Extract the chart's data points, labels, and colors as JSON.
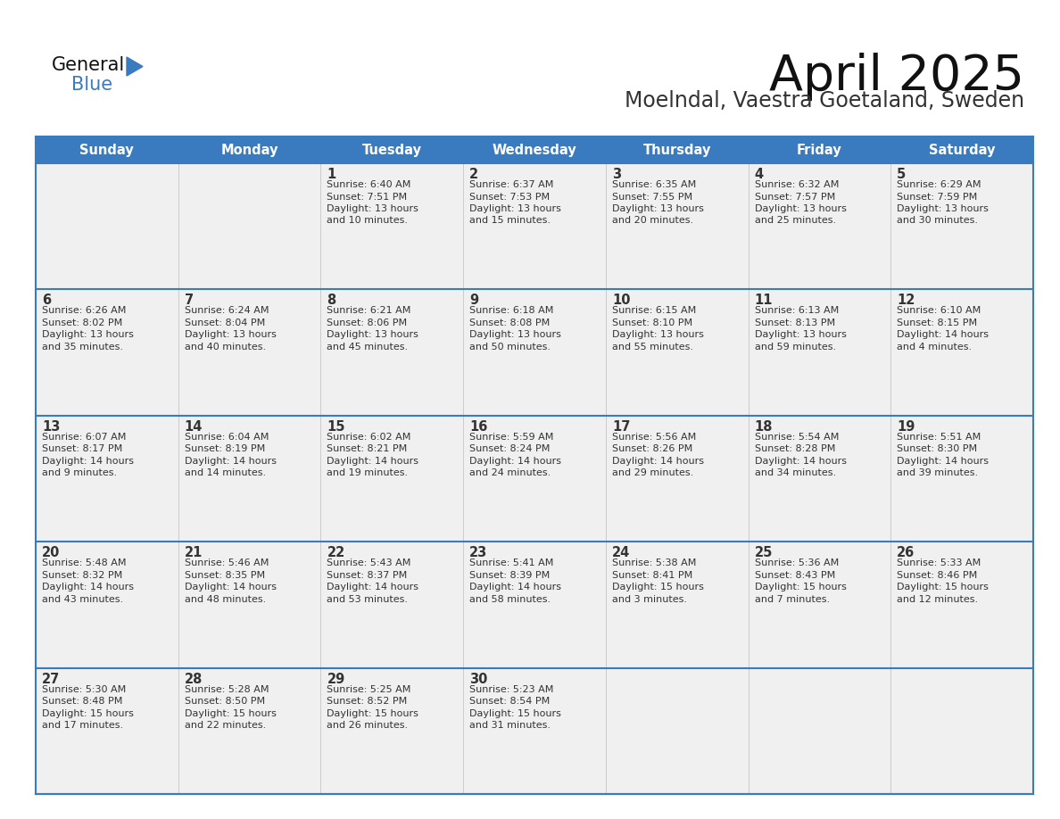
{
  "title": "April 2025",
  "subtitle": "Moelndal, Vaestra Goetaland, Sweden",
  "header_color": "#3a7bbf",
  "header_text_color": "#ffffff",
  "cell_bg_color": "#f0f0f0",
  "border_color": "#3a7bbf",
  "text_color": "#333333",
  "days_of_week": [
    "Sunday",
    "Monday",
    "Tuesday",
    "Wednesday",
    "Thursday",
    "Friday",
    "Saturday"
  ],
  "weeks": [
    [
      {
        "day": "",
        "sunrise": "",
        "sunset": "",
        "daylight": ""
      },
      {
        "day": "",
        "sunrise": "",
        "sunset": "",
        "daylight": ""
      },
      {
        "day": "1",
        "sunrise": "Sunrise: 6:40 AM",
        "sunset": "Sunset: 7:51 PM",
        "daylight": "Daylight: 13 hours\nand 10 minutes."
      },
      {
        "day": "2",
        "sunrise": "Sunrise: 6:37 AM",
        "sunset": "Sunset: 7:53 PM",
        "daylight": "Daylight: 13 hours\nand 15 minutes."
      },
      {
        "day": "3",
        "sunrise": "Sunrise: 6:35 AM",
        "sunset": "Sunset: 7:55 PM",
        "daylight": "Daylight: 13 hours\nand 20 minutes."
      },
      {
        "day": "4",
        "sunrise": "Sunrise: 6:32 AM",
        "sunset": "Sunset: 7:57 PM",
        "daylight": "Daylight: 13 hours\nand 25 minutes."
      },
      {
        "day": "5",
        "sunrise": "Sunrise: 6:29 AM",
        "sunset": "Sunset: 7:59 PM",
        "daylight": "Daylight: 13 hours\nand 30 minutes."
      }
    ],
    [
      {
        "day": "6",
        "sunrise": "Sunrise: 6:26 AM",
        "sunset": "Sunset: 8:02 PM",
        "daylight": "Daylight: 13 hours\nand 35 minutes."
      },
      {
        "day": "7",
        "sunrise": "Sunrise: 6:24 AM",
        "sunset": "Sunset: 8:04 PM",
        "daylight": "Daylight: 13 hours\nand 40 minutes."
      },
      {
        "day": "8",
        "sunrise": "Sunrise: 6:21 AM",
        "sunset": "Sunset: 8:06 PM",
        "daylight": "Daylight: 13 hours\nand 45 minutes."
      },
      {
        "day": "9",
        "sunrise": "Sunrise: 6:18 AM",
        "sunset": "Sunset: 8:08 PM",
        "daylight": "Daylight: 13 hours\nand 50 minutes."
      },
      {
        "day": "10",
        "sunrise": "Sunrise: 6:15 AM",
        "sunset": "Sunset: 8:10 PM",
        "daylight": "Daylight: 13 hours\nand 55 minutes."
      },
      {
        "day": "11",
        "sunrise": "Sunrise: 6:13 AM",
        "sunset": "Sunset: 8:13 PM",
        "daylight": "Daylight: 13 hours\nand 59 minutes."
      },
      {
        "day": "12",
        "sunrise": "Sunrise: 6:10 AM",
        "sunset": "Sunset: 8:15 PM",
        "daylight": "Daylight: 14 hours\nand 4 minutes."
      }
    ],
    [
      {
        "day": "13",
        "sunrise": "Sunrise: 6:07 AM",
        "sunset": "Sunset: 8:17 PM",
        "daylight": "Daylight: 14 hours\nand 9 minutes."
      },
      {
        "day": "14",
        "sunrise": "Sunrise: 6:04 AM",
        "sunset": "Sunset: 8:19 PM",
        "daylight": "Daylight: 14 hours\nand 14 minutes."
      },
      {
        "day": "15",
        "sunrise": "Sunrise: 6:02 AM",
        "sunset": "Sunset: 8:21 PM",
        "daylight": "Daylight: 14 hours\nand 19 minutes."
      },
      {
        "day": "16",
        "sunrise": "Sunrise: 5:59 AM",
        "sunset": "Sunset: 8:24 PM",
        "daylight": "Daylight: 14 hours\nand 24 minutes."
      },
      {
        "day": "17",
        "sunrise": "Sunrise: 5:56 AM",
        "sunset": "Sunset: 8:26 PM",
        "daylight": "Daylight: 14 hours\nand 29 minutes."
      },
      {
        "day": "18",
        "sunrise": "Sunrise: 5:54 AM",
        "sunset": "Sunset: 8:28 PM",
        "daylight": "Daylight: 14 hours\nand 34 minutes."
      },
      {
        "day": "19",
        "sunrise": "Sunrise: 5:51 AM",
        "sunset": "Sunset: 8:30 PM",
        "daylight": "Daylight: 14 hours\nand 39 minutes."
      }
    ],
    [
      {
        "day": "20",
        "sunrise": "Sunrise: 5:48 AM",
        "sunset": "Sunset: 8:32 PM",
        "daylight": "Daylight: 14 hours\nand 43 minutes."
      },
      {
        "day": "21",
        "sunrise": "Sunrise: 5:46 AM",
        "sunset": "Sunset: 8:35 PM",
        "daylight": "Daylight: 14 hours\nand 48 minutes."
      },
      {
        "day": "22",
        "sunrise": "Sunrise: 5:43 AM",
        "sunset": "Sunset: 8:37 PM",
        "daylight": "Daylight: 14 hours\nand 53 minutes."
      },
      {
        "day": "23",
        "sunrise": "Sunrise: 5:41 AM",
        "sunset": "Sunset: 8:39 PM",
        "daylight": "Daylight: 14 hours\nand 58 minutes."
      },
      {
        "day": "24",
        "sunrise": "Sunrise: 5:38 AM",
        "sunset": "Sunset: 8:41 PM",
        "daylight": "Daylight: 15 hours\nand 3 minutes."
      },
      {
        "day": "25",
        "sunrise": "Sunrise: 5:36 AM",
        "sunset": "Sunset: 8:43 PM",
        "daylight": "Daylight: 15 hours\nand 7 minutes."
      },
      {
        "day": "26",
        "sunrise": "Sunrise: 5:33 AM",
        "sunset": "Sunset: 8:46 PM",
        "daylight": "Daylight: 15 hours\nand 12 minutes."
      }
    ],
    [
      {
        "day": "27",
        "sunrise": "Sunrise: 5:30 AM",
        "sunset": "Sunset: 8:48 PM",
        "daylight": "Daylight: 15 hours\nand 17 minutes."
      },
      {
        "day": "28",
        "sunrise": "Sunrise: 5:28 AM",
        "sunset": "Sunset: 8:50 PM",
        "daylight": "Daylight: 15 hours\nand 22 minutes."
      },
      {
        "day": "29",
        "sunrise": "Sunrise: 5:25 AM",
        "sunset": "Sunset: 8:52 PM",
        "daylight": "Daylight: 15 hours\nand 26 minutes."
      },
      {
        "day": "30",
        "sunrise": "Sunrise: 5:23 AM",
        "sunset": "Sunset: 8:54 PM",
        "daylight": "Daylight: 15 hours\nand 31 minutes."
      },
      {
        "day": "",
        "sunrise": "",
        "sunset": "",
        "daylight": ""
      },
      {
        "day": "",
        "sunrise": "",
        "sunset": "",
        "daylight": ""
      },
      {
        "day": "",
        "sunrise": "",
        "sunset": "",
        "daylight": ""
      }
    ]
  ]
}
